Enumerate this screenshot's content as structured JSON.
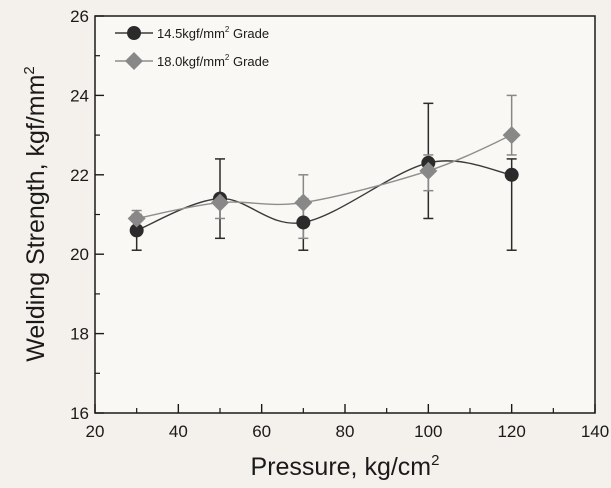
{
  "chart_data": {
    "type": "line",
    "xlabel": "Pressure, kg/cm",
    "xlabel_sup": "2",
    "ylabel": "Welding Strength, kgf/mm",
    "ylabel_sup": "2",
    "xlim": [
      20,
      140
    ],
    "ylim": [
      16,
      26
    ],
    "xticks": [
      "20",
      "40",
      "60",
      "80",
      "100",
      "120",
      "140"
    ],
    "yticks": [
      "16",
      "18",
      "20",
      "22",
      "24",
      "26"
    ],
    "legend_position": "top-left",
    "series": [
      {
        "name_pre": "14.5kgf/mm",
        "name_sup": "2",
        "name_post": " Grade",
        "marker": "circle",
        "color": "#2b2b2b",
        "line_color": "#3a3a3a",
        "x": [
          30,
          50,
          70,
          100,
          120
        ],
        "y": [
          20.6,
          21.4,
          20.8,
          22.3,
          22.0
        ],
        "err_low": [
          20.1,
          20.4,
          20.1,
          20.9,
          20.1
        ],
        "err_high": [
          21.0,
          22.4,
          21.4,
          23.8,
          22.4
        ]
      },
      {
        "name_pre": "18.0kgf/mm",
        "name_sup": "2",
        "name_post": " Grade",
        "marker": "diamond",
        "color": "#888888",
        "line_color": "#8e8e8e",
        "x": [
          30,
          50,
          70,
          100,
          120
        ],
        "y": [
          20.9,
          21.3,
          21.3,
          22.1,
          23.0
        ],
        "err_low": [
          20.6,
          20.9,
          20.4,
          21.6,
          22.5
        ],
        "err_high": [
          21.1,
          21.5,
          22.0,
          22.5,
          24.0
        ]
      }
    ]
  }
}
